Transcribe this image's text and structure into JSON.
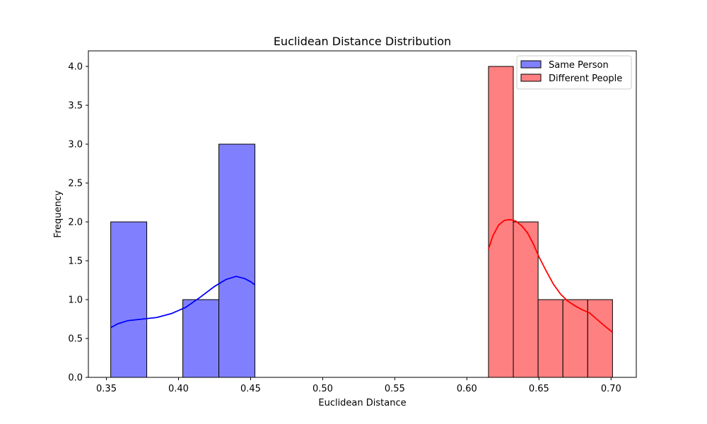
{
  "chart_data": {
    "type": "histogram",
    "title": "Euclidean Distance Distribution",
    "xlabel": "Euclidean Distance",
    "ylabel": "Frequency",
    "xlim": [
      0.3375,
      0.7175
    ],
    "ylim": [
      0,
      4.2
    ],
    "x_ticks": [
      0.35,
      0.4,
      0.45,
      0.5,
      0.55,
      0.6,
      0.65,
      0.7
    ],
    "x_tick_labels": [
      "0.35",
      "0.40",
      "0.45",
      "0.50",
      "0.55",
      "0.60",
      "0.65",
      "0.70"
    ],
    "y_ticks": [
      0.0,
      0.5,
      1.0,
      1.5,
      2.0,
      2.5,
      3.0,
      3.5,
      4.0
    ],
    "y_tick_labels": [
      "0.0",
      "0.5",
      "1.0",
      "1.5",
      "2.0",
      "2.5",
      "3.0",
      "3.5",
      "4.0"
    ],
    "grid": false,
    "legend_position": "top-right",
    "series": [
      {
        "name": "Same Person",
        "color": "#0000ff",
        "bar_fill": "#8080ff",
        "bins": [
          {
            "x0": 0.353,
            "x1": 0.378,
            "count": 2
          },
          {
            "x0": 0.378,
            "x1": 0.403,
            "count": 0
          },
          {
            "x0": 0.403,
            "x1": 0.428,
            "count": 1
          },
          {
            "x0": 0.428,
            "x1": 0.453,
            "count": 3
          }
        ],
        "kde": [
          [
            0.353,
            0.64
          ],
          [
            0.358,
            0.69
          ],
          [
            0.365,
            0.73
          ],
          [
            0.375,
            0.75
          ],
          [
            0.385,
            0.77
          ],
          [
            0.395,
            0.82
          ],
          [
            0.405,
            0.9
          ],
          [
            0.415,
            1.03
          ],
          [
            0.425,
            1.17
          ],
          [
            0.433,
            1.26
          ],
          [
            0.44,
            1.3
          ],
          [
            0.446,
            1.27
          ],
          [
            0.45,
            1.23
          ],
          [
            0.453,
            1.19
          ]
        ]
      },
      {
        "name": "Different People",
        "color": "#ff0000",
        "bar_fill": "#ff8080",
        "bins": [
          {
            "x0": 0.615,
            "x1": 0.6322,
            "count": 4
          },
          {
            "x0": 0.6322,
            "x1": 0.6494,
            "count": 2
          },
          {
            "x0": 0.6494,
            "x1": 0.6666,
            "count": 1
          },
          {
            "x0": 0.6666,
            "x1": 0.6838,
            "count": 1
          },
          {
            "x0": 0.6838,
            "x1": 0.701,
            "count": 1
          }
        ],
        "kde": [
          [
            0.615,
            1.65
          ],
          [
            0.618,
            1.82
          ],
          [
            0.622,
            1.96
          ],
          [
            0.626,
            2.02
          ],
          [
            0.63,
            2.03
          ],
          [
            0.634,
            2.01
          ],
          [
            0.638,
            1.95
          ],
          [
            0.642,
            1.86
          ],
          [
            0.646,
            1.72
          ],
          [
            0.65,
            1.55
          ],
          [
            0.655,
            1.37
          ],
          [
            0.66,
            1.2
          ],
          [
            0.665,
            1.07
          ],
          [
            0.67,
            0.98
          ],
          [
            0.675,
            0.92
          ],
          [
            0.68,
            0.87
          ],
          [
            0.685,
            0.83
          ],
          [
            0.69,
            0.75
          ],
          [
            0.695,
            0.67
          ],
          [
            0.701,
            0.58
          ]
        ]
      }
    ]
  }
}
